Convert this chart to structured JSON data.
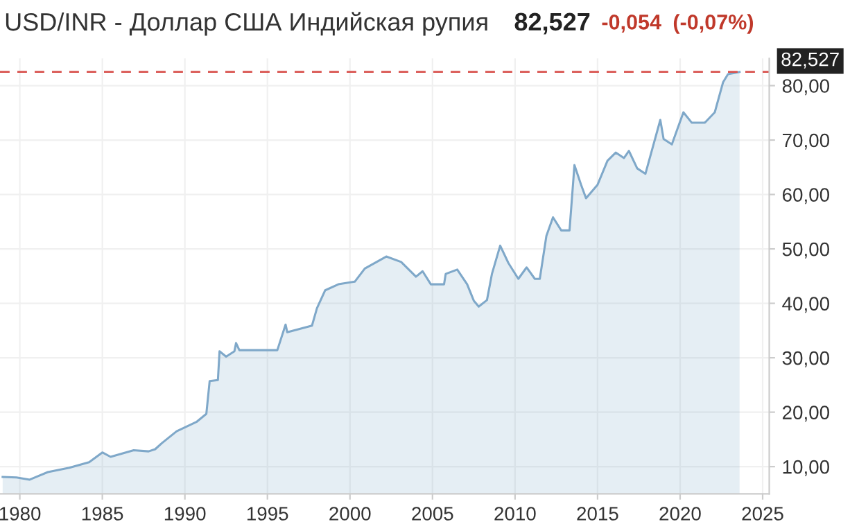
{
  "chart_data": {
    "type": "area",
    "title": "USD/INR - Доллар США Индийская рупия",
    "annotations": [
      "82,527",
      "-0,054",
      "(-0,07%)"
    ],
    "series": [
      {
        "color": "#7fa8c9",
        "x": [
          1978.96,
          1979.8,
          1980.6,
          1980.9,
          1981.7,
          1983.0,
          1984.2,
          1985.0,
          1985.5,
          1986.9,
          1987.8,
          1988.2,
          1988.6,
          1989.5,
          1990.7,
          1991.3,
          1991.5,
          1992.0,
          1992.1,
          1992.5,
          1993.0,
          1993.1,
          1993.3,
          1995.6,
          1996.1,
          1996.2,
          1997.7,
          1998.0,
          1998.5,
          1999.3,
          2000.3,
          2000.9,
          2002.2,
          2003.1,
          2004.0,
          2004.4,
          2004.9,
          2005.7,
          2005.8,
          2006.5,
          2007.1,
          2007.5,
          2007.8,
          2008.3,
          2008.6,
          2009.1,
          2009.6,
          2010.2,
          2010.7,
          2011.2,
          2011.5,
          2011.9,
          2012.3,
          2012.8,
          2013.3,
          2013.6,
          2014.0,
          2014.3,
          2015.0,
          2015.6,
          2016.1,
          2016.6,
          2016.9,
          2017.4,
          2017.9,
          2018.8,
          2019.0,
          2019.5,
          2020.2,
          2020.7,
          2021.5,
          2022.1,
          2022.6,
          2022.9,
          2023.6
        ],
        "values": [
          8.1,
          8.0,
          7.6,
          8.0,
          9.0,
          9.8,
          10.8,
          12.6,
          11.8,
          13.0,
          12.8,
          13.2,
          14.3,
          16.5,
          18.2,
          19.7,
          25.7,
          25.9,
          31.2,
          30.2,
          31.2,
          32.7,
          31.4,
          31.4,
          36.1,
          34.7,
          35.9,
          39.1,
          42.4,
          43.5,
          44.0,
          46.4,
          48.6,
          47.6,
          44.9,
          45.9,
          43.5,
          43.5,
          45.4,
          46.2,
          43.5,
          40.5,
          39.4,
          40.6,
          45.4,
          50.6,
          47.4,
          44.5,
          46.6,
          44.5,
          44.5,
          52.4,
          55.8,
          53.4,
          53.4,
          65.4,
          61.8,
          59.3,
          61.8,
          66.2,
          67.7,
          66.7,
          68.0,
          64.8,
          63.8,
          73.7,
          70.2,
          69.2,
          75.1,
          73.2,
          73.2,
          75.1,
          80.6,
          82.1,
          82.5
        ]
      }
    ],
    "xlim": [
      1978.8,
      2025.4
    ],
    "xticks": [
      1980,
      1985,
      1990,
      1995,
      2000,
      2005,
      2010,
      2015,
      2020,
      2025
    ],
    "ylim": [
      5,
      85
    ],
    "yticks": [
      {
        "value": 10,
        "label": "10,00"
      },
      {
        "value": 20,
        "label": "20,00"
      },
      {
        "value": 30,
        "label": "30,00"
      },
      {
        "value": 40,
        "label": "40,00"
      },
      {
        "value": 50,
        "label": "50,00"
      },
      {
        "value": 60,
        "label": "60,00"
      },
      {
        "value": 70,
        "label": "70,00"
      },
      {
        "value": 80,
        "label": "80,00"
      }
    ],
    "ref_lines": [
      {
        "axis": "y",
        "value": 82.527,
        "label": "82,527",
        "color": "#d9534f",
        "line_style": "dashed"
      }
    ],
    "grid": true,
    "legend": false
  }
}
